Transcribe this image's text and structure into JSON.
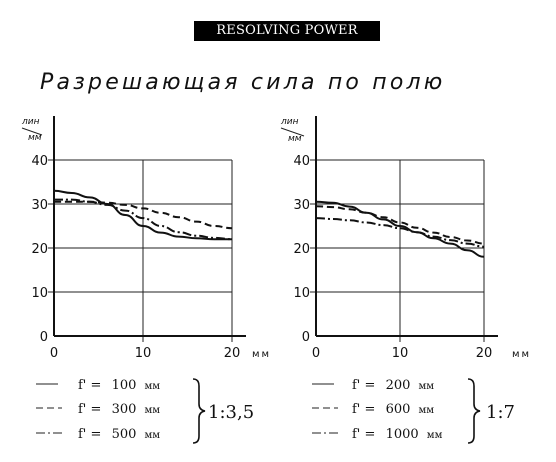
{
  "header": {
    "label": "RESOLVING POWER"
  },
  "title": "Разрешающая сила по полю",
  "charts": [
    {
      "y_unit_top": "лин",
      "y_unit_bottom": "мм",
      "x_unit": "мм",
      "ratio": "1:3,5",
      "legend": [
        {
          "prefix": "f' =",
          "value": "100",
          "unit": "мм"
        },
        {
          "prefix": "f' =",
          "value": "300",
          "unit": "мм"
        },
        {
          "prefix": "f' =",
          "value": "500",
          "unit": "мм"
        }
      ]
    },
    {
      "y_unit_top": "лин",
      "y_unit_bottom": "мм",
      "x_unit": "мм",
      "ratio": "1:7",
      "legend": [
        {
          "prefix": "f' =",
          "value": "200",
          "unit": "мм"
        },
        {
          "prefix": "f' =",
          "value": "600",
          "unit": "мм"
        },
        {
          "prefix": "f' =",
          "value": "1000",
          "unit": "мм"
        }
      ]
    }
  ],
  "chart_data": [
    {
      "type": "line",
      "xlim": [
        0,
        20
      ],
      "ylim": [
        0,
        40
      ],
      "x_ticks": [
        0,
        10,
        20
      ],
      "y_ticks": [
        0,
        10,
        20,
        30,
        40
      ],
      "grid": true,
      "series": [
        {
          "name": "f' = 100 мм",
          "style": "solid",
          "x": [
            0,
            2,
            4,
            6,
            8,
            10,
            12,
            14,
            16,
            18,
            20
          ],
          "y": [
            33,
            32.5,
            31.5,
            30,
            27.5,
            25,
            23.5,
            22.6,
            22.2,
            22,
            22
          ]
        },
        {
          "name": "f' = 300 мм",
          "style": "dashed",
          "x": [
            0,
            2,
            4,
            6,
            8,
            10,
            12,
            14,
            16,
            18,
            20
          ],
          "y": [
            30.5,
            30.5,
            30.5,
            30.3,
            29.8,
            29,
            28,
            27,
            26,
            25,
            24.5
          ]
        },
        {
          "name": "f' = 500 мм",
          "style": "dashdot",
          "x": [
            0,
            2,
            4,
            6,
            8,
            10,
            12,
            14,
            16,
            18,
            20
          ],
          "y": [
            31,
            31,
            30.5,
            29.8,
            28.5,
            26.8,
            25,
            23.6,
            22.8,
            22.3,
            22
          ]
        }
      ]
    },
    {
      "type": "line",
      "xlim": [
        0,
        20
      ],
      "ylim": [
        0,
        40
      ],
      "x_ticks": [
        0,
        10,
        20
      ],
      "y_ticks": [
        0,
        10,
        20,
        30,
        40
      ],
      "grid": true,
      "series": [
        {
          "name": "f' = 200 мм",
          "style": "solid",
          "x": [
            0,
            2,
            4,
            6,
            8,
            10,
            12,
            14,
            16,
            18,
            20
          ],
          "y": [
            30.5,
            30.3,
            29.4,
            28,
            26.5,
            25,
            23.6,
            22.2,
            21,
            19.5,
            18
          ]
        },
        {
          "name": "f' = 600 мм",
          "style": "dashed",
          "x": [
            0,
            2,
            4,
            6,
            8,
            10,
            12,
            14,
            16,
            18,
            20
          ],
          "y": [
            29.5,
            29.3,
            28.8,
            28,
            27,
            25.8,
            24.6,
            23.5,
            22.5,
            21.7,
            21
          ]
        },
        {
          "name": "f' = 1000 мм",
          "style": "dashdot",
          "x": [
            0,
            2,
            4,
            6,
            8,
            10,
            12,
            14,
            16,
            18,
            20
          ],
          "y": [
            26.8,
            26.6,
            26.3,
            25.8,
            25.2,
            24.5,
            23.6,
            22.6,
            21.8,
            21,
            20.3
          ]
        }
      ]
    }
  ]
}
